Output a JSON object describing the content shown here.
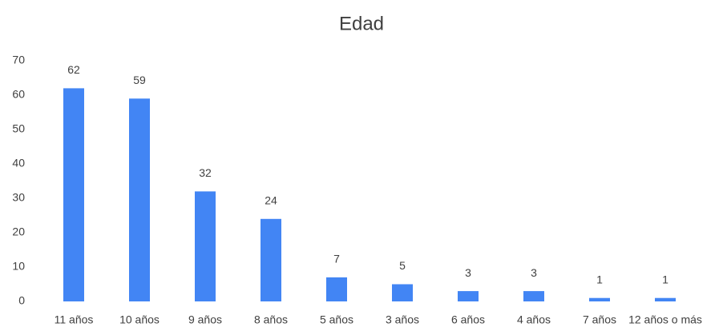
{
  "chart_data": {
    "type": "bar",
    "title": "Edad",
    "categories": [
      "11 años",
      "10 años",
      "9 años",
      "8 años",
      "5 años",
      "3 años",
      "6 años",
      "4 años",
      "7 años",
      "12 años o más"
    ],
    "values": [
      62,
      59,
      32,
      24,
      7,
      5,
      3,
      3,
      1,
      1
    ],
    "color": "#4285f4",
    "ylim": [
      0,
      70
    ],
    "yticks": [
      0,
      10,
      20,
      30,
      40,
      50,
      60,
      70
    ],
    "grid": false,
    "data_labels": true
  }
}
